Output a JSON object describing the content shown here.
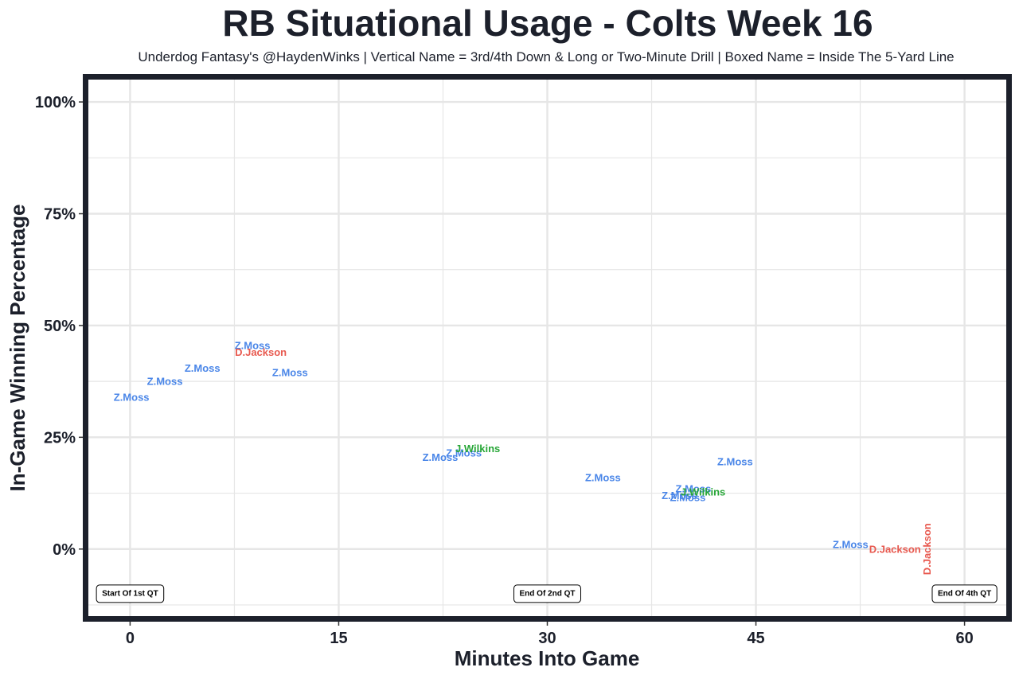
{
  "chart_data": {
    "type": "scatter",
    "title": "RB Situational Usage - Colts Week 16",
    "subtitle": "Underdog Fantasy's @HaydenWinks | Vertical Name = 3rd/4th Down & Long or Two-Minute Drill | Boxed Name = Inside The 5-Yard Line",
    "xlabel": "Minutes Into Game",
    "ylabel": "In-Game Winning Percentage",
    "xlim": [
      -3,
      63
    ],
    "ylim": [
      -15,
      105
    ],
    "x_ticks": [
      0,
      15,
      30,
      45,
      60
    ],
    "x_tick_labels": [
      "0",
      "15",
      "30",
      "45",
      "60"
    ],
    "y_ticks": [
      0,
      25,
      50,
      75,
      100
    ],
    "y_tick_labels": [
      "0%",
      "25%",
      "50%",
      "75%",
      "100%"
    ],
    "grid": true,
    "colors": {
      "Z.Moss": "#4a86e8",
      "D.Jackson": "#e8594f",
      "J.Wilkins": "#27a637",
      "frame": "#1c202b",
      "grid": "#e6e6e6"
    },
    "points": [
      {
        "player": "Z.Moss",
        "x": 0.1,
        "y": 34.0,
        "vertical": false
      },
      {
        "player": "Z.Moss",
        "x": 2.5,
        "y": 37.5,
        "vertical": false
      },
      {
        "player": "Z.Moss",
        "x": 5.2,
        "y": 40.5,
        "vertical": false
      },
      {
        "player": "Z.Moss",
        "x": 8.8,
        "y": 45.5,
        "vertical": false
      },
      {
        "player": "D.Jackson",
        "x": 9.4,
        "y": 44.0,
        "vertical": false
      },
      {
        "player": "Z.Moss",
        "x": 11.5,
        "y": 39.5,
        "vertical": false
      },
      {
        "player": "Z.Moss",
        "x": 22.3,
        "y": 20.5,
        "vertical": false
      },
      {
        "player": "Z.Moss",
        "x": 24.0,
        "y": 21.5,
        "vertical": false
      },
      {
        "player": "J.Wilkins",
        "x": 25.0,
        "y": 22.5,
        "vertical": false
      },
      {
        "player": "Z.Moss",
        "x": 34.0,
        "y": 16.0,
        "vertical": false
      },
      {
        "player": "Z.Moss",
        "x": 39.5,
        "y": 12.0,
        "vertical": false
      },
      {
        "player": "Z.Moss",
        "x": 40.1,
        "y": 11.5,
        "vertical": false
      },
      {
        "player": "Z.Moss",
        "x": 40.5,
        "y": 13.5,
        "vertical": false
      },
      {
        "player": "J.Wilkins",
        "x": 41.2,
        "y": 12.8,
        "vertical": false
      },
      {
        "player": "Z.Moss",
        "x": 43.5,
        "y": 19.5,
        "vertical": false
      },
      {
        "player": "Z.Moss",
        "x": 51.8,
        "y": 1.0,
        "vertical": false
      },
      {
        "player": "D.Jackson",
        "x": 55.0,
        "y": 0.0,
        "vertical": false
      },
      {
        "player": "D.Jackson",
        "x": 57.3,
        "y": 0.0,
        "vertical": true
      }
    ],
    "annotations": [
      {
        "text": "Start Of 1st QT",
        "x": 0,
        "y": -10
      },
      {
        "text": "End Of 2nd QT",
        "x": 30,
        "y": -10
      },
      {
        "text": "End Of 4th QT",
        "x": 60,
        "y": -10
      }
    ]
  }
}
